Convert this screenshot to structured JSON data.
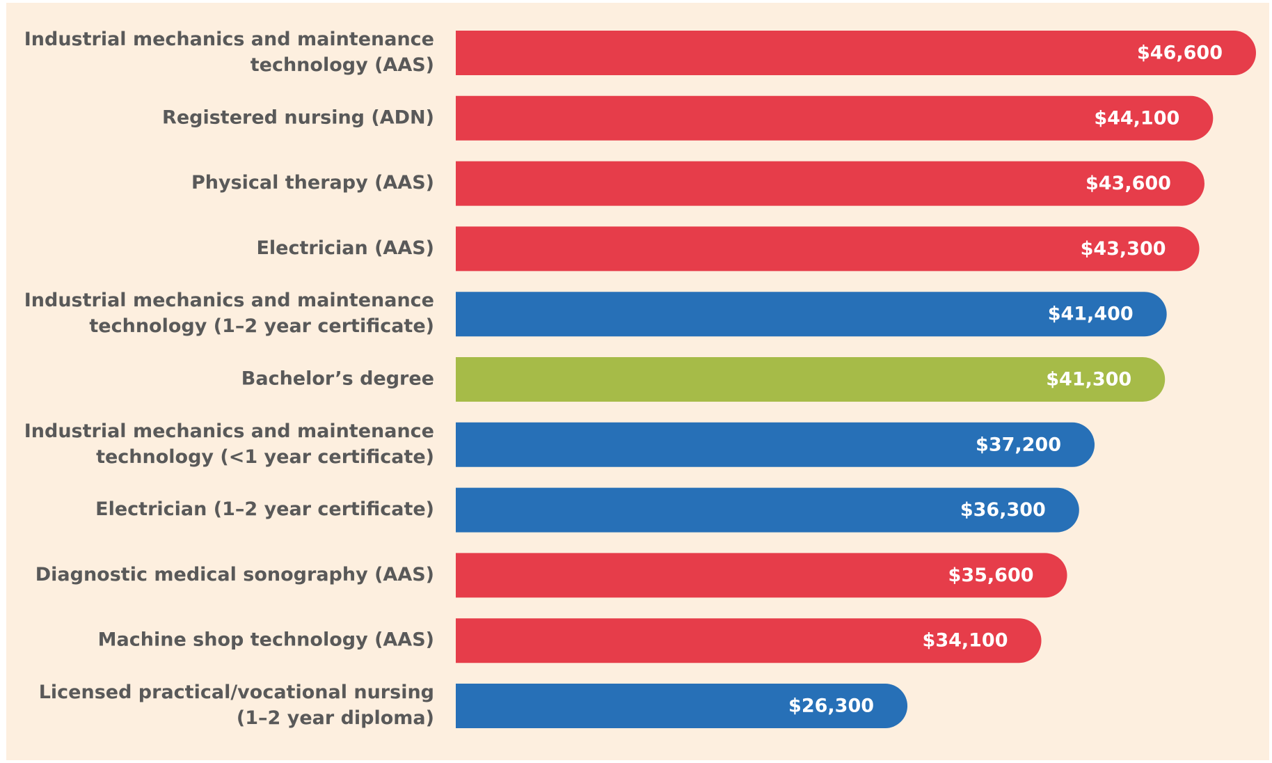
{
  "chart_data": {
    "type": "bar",
    "orientation": "horizontal",
    "categories": [
      [
        "Industrial mechanics and maintenance",
        "technology (AAS)"
      ],
      [
        "Registered nursing (ADN)"
      ],
      [
        "Physical therapy (AAS)"
      ],
      [
        "Electrician (AAS)"
      ],
      [
        "Industrial mechanics and maintenance",
        "technology (1–2 year certificate)"
      ],
      [
        "Bachelor’s degree"
      ],
      [
        "Industrial mechanics and maintenance",
        "technology (<1 year certificate)"
      ],
      [
        "Electrician (1–2 year certificate)"
      ],
      [
        "Diagnostic medical sonography (AAS)"
      ],
      [
        "Machine shop technology (AAS)"
      ],
      [
        "Licensed practical/vocational nursing",
        "(1–2 year diploma)"
      ]
    ],
    "values": [
      46600,
      44100,
      43600,
      43300,
      41400,
      41300,
      37200,
      36300,
      35600,
      34100,
      26300
    ],
    "value_labels": [
      "$46,600",
      "$44,100",
      "$43,600",
      "$43,300",
      "$41,400",
      "$41,300",
      "$37,200",
      "$36,300",
      "$35,600",
      "$34,100",
      "$26,300"
    ],
    "colors": [
      "#e63d4a",
      "#e63d4a",
      "#e63d4a",
      "#e63d4a",
      "#2770b7",
      "#a6bb48",
      "#2770b7",
      "#2770b7",
      "#e63d4a",
      "#e63d4a",
      "#2770b7"
    ]
  }
}
